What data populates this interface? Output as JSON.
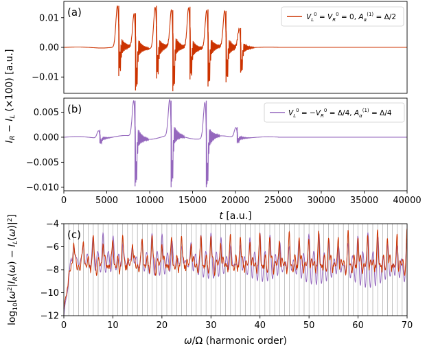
{
  "colors": {
    "orange": "#cc3300",
    "purple": "#9467bd",
    "grid": "#9a9a9a"
  },
  "shared_xlabel": "t [a.u.]",
  "shared_ylabel_ab": "I_R − I_L (×100) [a.u.]",
  "chart_data": [
    {
      "panel": "(a)",
      "type": "line",
      "xlim": [
        0,
        40000
      ],
      "ylim": [
        -0.0155,
        0.0155
      ],
      "yticks": [
        "0.01",
        "0.00",
        "−0.01"
      ],
      "ytick_values": [
        0.01,
        0.0,
        -0.01
      ],
      "xticks": [],
      "legend_position": "top-right",
      "series": [
        {
          "name": "V_L^0 = V_R^0 = 0, A_α^(1) = Δ/2",
          "color": "orange",
          "bursts": [
            {
              "t": 6400,
              "min": -0.0097,
              "max": 0.014
            },
            {
              "t": 8350,
              "min": -0.0145,
              "max": 0.0115
            },
            {
              "t": 10800,
              "min": -0.0105,
              "max": 0.014
            },
            {
              "t": 12700,
              "min": -0.0148,
              "max": 0.0125
            },
            {
              "t": 14700,
              "min": -0.0108,
              "max": 0.0137
            },
            {
              "t": 16800,
              "min": -0.0132,
              "max": 0.0128
            },
            {
              "t": 18900,
              "min": -0.0118,
              "max": 0.0123
            },
            {
              "t": 20600,
              "min": -0.0085,
              "max": 0.0065
            }
          ],
          "baseline_after": 25000
        }
      ]
    },
    {
      "panel": "(b)",
      "type": "line",
      "xlim": [
        0,
        40000
      ],
      "ylim": [
        -0.0107,
        0.0078
      ],
      "yticks": [
        "0.005",
        "0.000",
        "−0.005",
        "−0.010"
      ],
      "ytick_values": [
        0.005,
        0.0,
        -0.005,
        -0.01
      ],
      "xticks": [
        "0",
        "5000",
        "10000",
        "15000",
        "20000",
        "25000",
        "30000",
        "35000",
        "40000"
      ],
      "xtick_values": [
        0,
        5000,
        10000,
        15000,
        20000,
        25000,
        30000,
        35000,
        40000
      ],
      "xlabel": "t [a.u.]",
      "legend_position": "top-right",
      "series": [
        {
          "name": "V_L^0 = −V_R^0 = Δ/4, A_α^(1) = Δ/4",
          "color": "purple",
          "bursts": [
            {
              "t": 4200,
              "min": -0.0012,
              "max": 0.0015
            },
            {
              "t": 8300,
              "min": -0.0098,
              "max": 0.0073
            },
            {
              "t": 12500,
              "min": -0.01,
              "max": 0.0073
            },
            {
              "t": 16600,
              "min": -0.01,
              "max": 0.0073
            },
            {
              "t": 20200,
              "min": -0.0012,
              "max": 0.002
            }
          ],
          "baseline_after": 25000
        }
      ]
    },
    {
      "panel": "(c)",
      "type": "line",
      "xlim": [
        0,
        70
      ],
      "ylim": [
        -12,
        -4
      ],
      "yticks": [
        "−4",
        "−6",
        "−8",
        "−10",
        "−12"
      ],
      "ytick_values": [
        -4,
        -6,
        -8,
        -10,
        -12
      ],
      "xticks": [
        "0",
        "10",
        "20",
        "30",
        "40",
        "50",
        "60",
        "70"
      ],
      "xtick_values": [
        0,
        10,
        20,
        30,
        40,
        50,
        60,
        70
      ],
      "xlabel": "ω/Ω (harmonic order)",
      "ylabel": "log10[ω² |I_R(ω) − I_L(ω)|²]",
      "harmonic_lines": "every integer harmonic order 1–69",
      "series": [
        {
          "name": "orange",
          "color": "orange",
          "peak_level": -4.6,
          "trough_level": -8.1,
          "start": -11.4
        },
        {
          "name": "purple",
          "color": "purple",
          "peak_level": -5.4,
          "trough_level": -9.6,
          "start": -12.0
        }
      ]
    }
  ]
}
